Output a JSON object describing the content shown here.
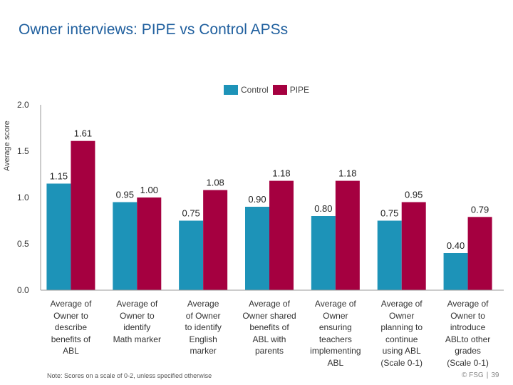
{
  "title": "Owner interviews: PIPE vs Control APSs",
  "note": "Note: Scores on a scale of 0-2, unless specified otherwise",
  "footer": {
    "brand": "© FSG",
    "page": "39"
  },
  "colors": {
    "control": "#1d93b8",
    "pipe": "#a50040",
    "title": "#1f5f9e"
  },
  "chart_data": {
    "type": "bar",
    "title": "",
    "xlabel": "",
    "ylabel": "Average score",
    "ylim": [
      0,
      2
    ],
    "yticks": [
      "0.0",
      "0.5",
      "1.0",
      "1.5",
      "2.0"
    ],
    "grid": false,
    "legend": "top-center",
    "categories": [
      "Average of Owner to describe benefits of ABL",
      "Average of Owner to identify Math marker",
      "Average of Owner to identify English marker",
      "Average of Owner shared benefits of ABL with parents",
      "Average of Owner ensuring teachers implementing ABL",
      "Average of Owner planning to continue using ABL (Scale 0-1)",
      "Average of Owner to introduce ABLto other grades (Scale 0-1)"
    ],
    "category_lines": [
      [
        "Average of",
        "Owner to",
        "describe",
        "benefits of",
        "ABL"
      ],
      [
        "Average of",
        "Owner to",
        "identify",
        "Math marker"
      ],
      [
        "Average",
        "of Owner",
        "to identify",
        "English",
        "marker"
      ],
      [
        "Average of",
        "Owner shared",
        "benefits of",
        "ABL with",
        "parents"
      ],
      [
        "Average of",
        "Owner",
        "ensuring",
        "teachers",
        "implementing",
        "ABL"
      ],
      [
        "Average of",
        "Owner",
        "planning to",
        "continue",
        "using ABL",
        "(Scale 0-1)"
      ],
      [
        "Average of",
        "Owner to",
        "introduce",
        "ABLto other",
        "grades",
        "(Scale 0-1)"
      ]
    ],
    "series": [
      {
        "name": "Control",
        "values": [
          1.15,
          0.95,
          0.75,
          0.9,
          0.8,
          0.75,
          0.4
        ],
        "labels": [
          "1.15",
          "0.95",
          "0.75",
          "0.90",
          "0.80",
          "0.75",
          "0.40"
        ]
      },
      {
        "name": "PIPE",
        "values": [
          1.61,
          1.0,
          1.08,
          1.18,
          1.18,
          0.95,
          0.79
        ],
        "labels": [
          "1.61",
          "1.00",
          "1.08",
          "1.18",
          "1.18",
          "0.95",
          "0.79"
        ]
      }
    ]
  }
}
